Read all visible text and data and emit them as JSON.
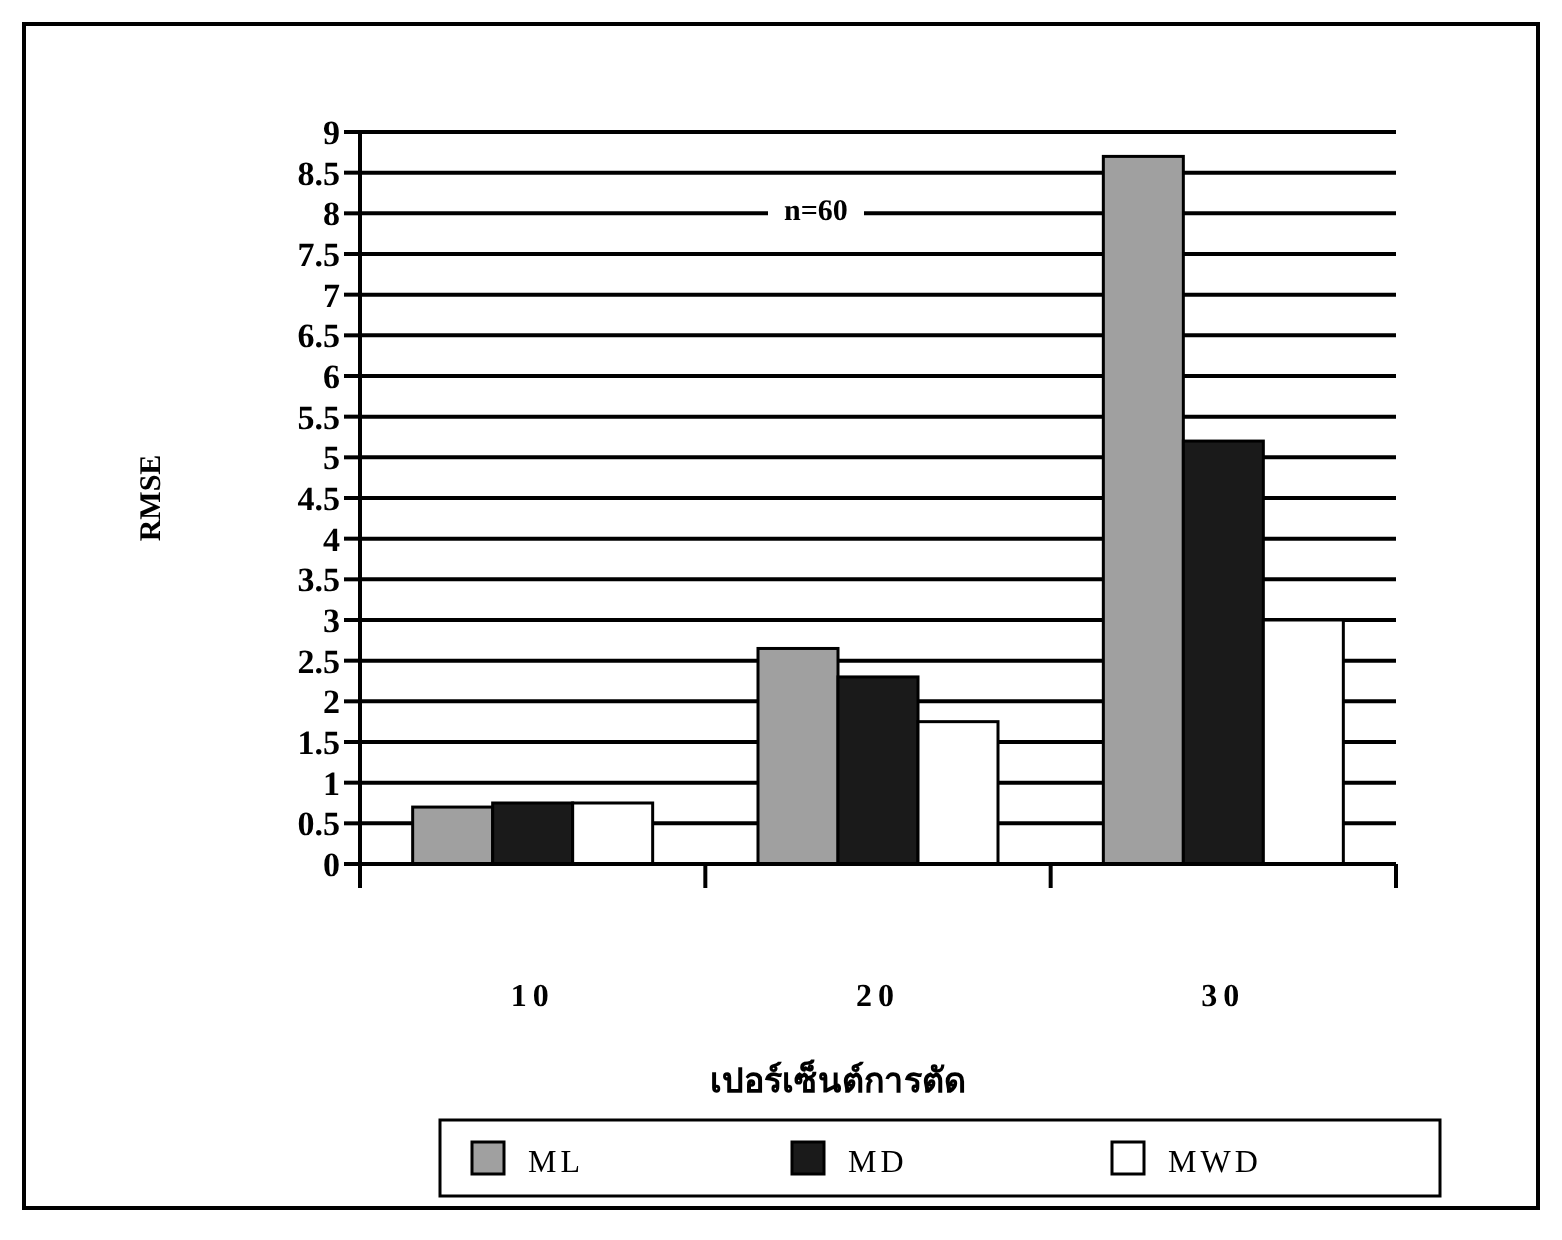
{
  "chart_data": {
    "type": "bar",
    "categories": [
      "10",
      "20",
      "30"
    ],
    "series": [
      {
        "name": "ML",
        "color": "#a0a0a0",
        "values": [
          0.7,
          2.65,
          8.7
        ]
      },
      {
        "name": "MD",
        "color": "#1a1a1a",
        "values": [
          0.75,
          2.3,
          5.2
        ]
      },
      {
        "name": "MWD",
        "color": "#ffffff",
        "values": [
          0.75,
          1.75,
          3.0
        ]
      }
    ],
    "ylabel": "RMSE",
    "xlabel": "เปอร์เซ็นต์การตัด",
    "annotations": [
      {
        "text": "n=60"
      }
    ],
    "ylim": [
      0,
      9
    ],
    "yticks": [
      0,
      0.5,
      1,
      1.5,
      2,
      2.5,
      3,
      3.5,
      4,
      4.5,
      5,
      5.5,
      6,
      6.5,
      7,
      7.5,
      8,
      8.5,
      9
    ],
    "grid": "y",
    "legend": "bottom"
  }
}
